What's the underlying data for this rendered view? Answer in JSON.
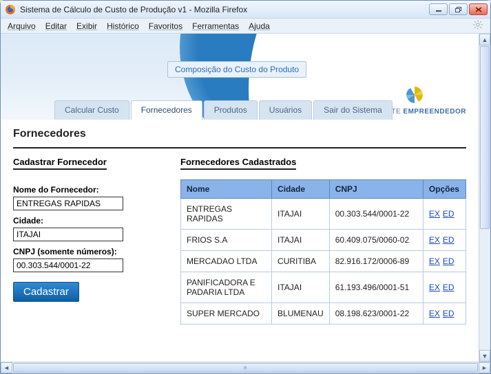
{
  "window": {
    "title": "Sistema de Cálculo de Custo de Produção v1 - Mozilla Firefox"
  },
  "menubar": {
    "items": [
      "Arquivo",
      "Editar",
      "Exibir",
      "Histórico",
      "Favoritos",
      "Ferramentas",
      "Ajuda"
    ]
  },
  "hero": {
    "button_label": "Composição do Custo do Produto",
    "brand_line1": "AMBIENTE ",
    "brand_line2": "EMPREENDEDOR",
    "accent_color": "#2a7cc0",
    "logo_color": "#e2b90b"
  },
  "tabs": {
    "items": [
      {
        "label": "Calcular Custo",
        "active": false
      },
      {
        "label": "Fornecedores",
        "active": true
      },
      {
        "label": "Produtos",
        "active": false
      },
      {
        "label": "Usuários",
        "active": false
      },
      {
        "label": "Sair do Sistema",
        "active": false
      }
    ]
  },
  "page_title": "Fornecedores",
  "form": {
    "section_title": "Cadastrar Fornecedor",
    "labels": {
      "nome": "Nome do Fornecedor:",
      "cidade": "Cidade:",
      "cnpj": "CNPJ (somente números):"
    },
    "values": {
      "nome": "ENTREGAS RAPIDAS",
      "cidade": "ITAJAI",
      "cnpj": "00.303.544/0001-22"
    },
    "submit_label": "Cadastrar"
  },
  "table": {
    "section_title": "Fornecedores Cadastrados",
    "columns": [
      "Nome",
      "Cidade",
      "CNPJ",
      "Opções"
    ],
    "option_links": [
      "EX",
      "ED"
    ],
    "rows": [
      {
        "nome": "ENTREGAS RAPIDAS",
        "cidade": "ITAJAI",
        "cnpj": "00.303.544/0001-22"
      },
      {
        "nome": "FRIOS S.A",
        "cidade": "ITAJAI",
        "cnpj": "60.409.075/0060-02"
      },
      {
        "nome": "MERCADAO LTDA",
        "cidade": "CURITIBA",
        "cnpj": "82.916.172/0006-89"
      },
      {
        "nome": "PANIFICADORA E PADARIA LTDA",
        "cidade": "ITAJAI",
        "cnpj": "61.193.496/0001-51"
      },
      {
        "nome": "SUPER MERCADO",
        "cidade": "BLUMENAU",
        "cnpj": "08.198.623/0001-22"
      }
    ],
    "header_bg": "#8ab3ea",
    "border_color": "#6c90c4"
  }
}
